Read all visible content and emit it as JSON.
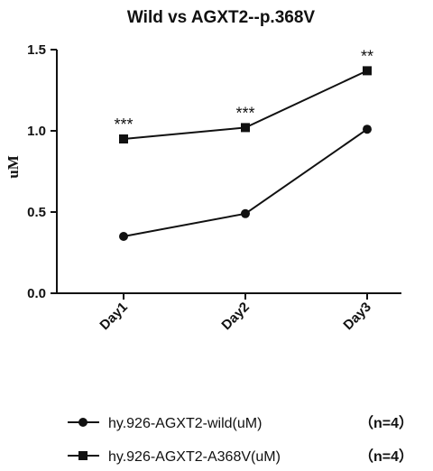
{
  "chart_data": {
    "type": "line",
    "title": "Wild vs AGXT2--p.368V",
    "ylabel": "uM",
    "xlabel": "",
    "categories": [
      "Day1",
      "Day2",
      "Day3"
    ],
    "ylim": [
      0,
      1.5
    ],
    "yticks": [
      "0.0",
      "0.5",
      "1.0",
      "1.5"
    ],
    "grid": false,
    "legend_position": "bottom",
    "series": [
      {
        "name": "hy.926-AGXT2-wild(uM)",
        "n_label": "（n=4）",
        "marker": "circle",
        "color": "#111111",
        "values": [
          0.35,
          0.49,
          1.01
        ]
      },
      {
        "name": "hy.926-AGXT2-A368V(uM)",
        "n_label": "（n=4）",
        "marker": "square",
        "color": "#111111",
        "values": [
          0.95,
          1.02,
          1.37
        ]
      }
    ],
    "annotations": [
      {
        "category": "Day1",
        "text": "***"
      },
      {
        "category": "Day2",
        "text": "***"
      },
      {
        "category": "Day3",
        "text": "**"
      }
    ]
  }
}
